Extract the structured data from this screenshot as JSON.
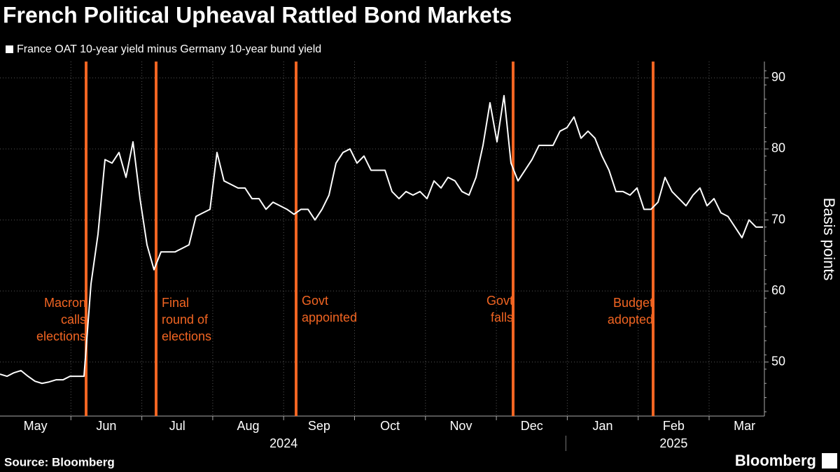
{
  "chart_data": {
    "type": "line",
    "title": "French Political Upheaval Rattled Bond Markets",
    "source": "Source: Bloomberg",
    "brand": "Bloomberg",
    "y_label": "Basis points",
    "months": [
      "May",
      "Jun",
      "Jul",
      "Aug",
      "Sep",
      "Oct",
      "Nov",
      "Dec",
      "Jan",
      "Feb",
      "Mar"
    ],
    "years": [
      "2024",
      "2025"
    ],
    "ylim": [
      42.4,
      92.3
    ],
    "yticks": [
      50,
      60,
      70,
      80,
      90
    ],
    "grid": true,
    "series": [
      {
        "name": "France OAT 10-year yield minus Germany 10-year bund yield",
        "color": "#ffffff",
        "values": [
          48.3,
          48,
          48.5,
          48.8,
          48,
          47.3,
          47,
          47.2,
          47.5,
          47.5,
          48,
          48,
          48,
          61,
          68,
          78.5,
          78,
          79.5,
          76,
          81,
          73,
          66.5,
          63,
          65.5,
          65.5,
          65.5,
          66,
          66.5,
          70.5,
          71,
          71.5,
          79.5,
          75.5,
          75,
          74.5,
          74.5,
          73,
          73,
          71.5,
          72.5,
          72,
          71.5,
          70.8,
          71.5,
          71.5,
          70,
          71.5,
          73.5,
          78,
          79.5,
          80,
          78,
          79,
          77,
          77,
          77,
          74,
          73,
          74,
          73.5,
          74,
          73,
          75.5,
          74.5,
          76,
          75.5,
          74,
          73.5,
          76,
          80.5,
          86.5,
          81,
          87.5,
          78,
          75.5,
          77,
          78.5,
          80.5,
          80.5,
          80.5,
          82.5,
          83,
          84.5,
          81.5,
          82.5,
          81.5,
          79,
          77,
          74,
          74,
          73.5,
          74.5,
          71.5,
          71.5,
          72.5,
          76,
          74,
          73,
          72,
          73.5,
          74.5,
          72,
          73,
          71,
          70.5,
          69,
          67.5,
          70,
          69,
          69
        ]
      }
    ],
    "events": [
      {
        "index": 12,
        "color": "#f26522",
        "lines": [
          "Macron",
          "calls",
          "elections"
        ]
      },
      {
        "index": 22,
        "color": "#f26522",
        "lines": [
          "Final",
          "round of",
          "elections"
        ]
      },
      {
        "index": 42,
        "color": "#f26522",
        "lines": [
          "Govt",
          "appointed"
        ]
      },
      {
        "index": 73,
        "color": "#f26522",
        "lines": [
          "Govt",
          "falls"
        ]
      },
      {
        "index": 93,
        "color": "#f26522",
        "lines": [
          "Budget",
          "adopted"
        ]
      }
    ]
  }
}
